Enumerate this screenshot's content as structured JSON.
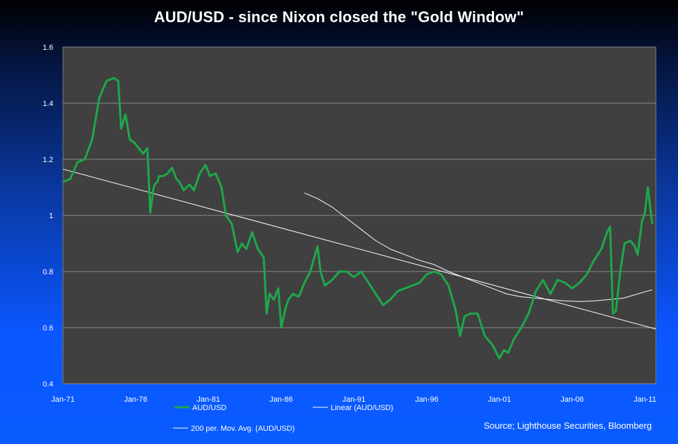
{
  "chart_data": {
    "type": "line",
    "title": "AUD/USD - since Nixon closed the \"Gold Window\"",
    "source": "Source; Lighthouse Securities, Bloomberg",
    "xlim": [
      1971.0,
      2011.75
    ],
    "ylim": [
      0.4,
      1.6
    ],
    "x_tick_labels": [
      "Jan-71",
      "Jan-76",
      "Jan-81",
      "Jan-86",
      "Jan-91",
      "Jan-96",
      "Jan-01",
      "Jan-06",
      "Jan-11"
    ],
    "x_tick_values": [
      1971,
      1976,
      1981,
      1986,
      1991,
      1996,
      2001,
      2006,
      2011
    ],
    "y_tick_labels": [
      "0.4",
      "0.6",
      "0.8",
      "1",
      "1.2",
      "1.4",
      "1.6"
    ],
    "y_tick_values": [
      0.4,
      0.6,
      0.8,
      1.0,
      1.2,
      1.4,
      1.6
    ],
    "grid": "horizontal",
    "legend": [
      "AUD/USD",
      "Linear (AUD/USD)",
      "200 per. Mov. Avg. (AUD/USD)"
    ],
    "colors": {
      "plot_bg": "#404040",
      "aud": "#1ea84a",
      "trend": "#ffffff",
      "ma": "#ffffff",
      "grid": "#8a8a8a"
    },
    "series": [
      {
        "name": "AUD/USD",
        "x": [
          1971.0,
          1971.5,
          1972.0,
          1972.5,
          1973.0,
          1973.5,
          1974.0,
          1974.5,
          1974.8,
          1975.0,
          1975.3,
          1975.6,
          1975.9,
          1976.2,
          1976.5,
          1976.8,
          1977.0,
          1977.2,
          1977.3,
          1977.5,
          1977.6,
          1977.9,
          1978.2,
          1978.5,
          1978.8,
          1979.0,
          1979.3,
          1979.7,
          1980.0,
          1980.4,
          1980.8,
          1981.1,
          1981.5,
          1981.9,
          1982.2,
          1982.6,
          1983.0,
          1983.3,
          1983.6,
          1984.0,
          1984.4,
          1984.8,
          1985.0,
          1985.2,
          1985.5,
          1985.8,
          1986.0,
          1986.3,
          1986.5,
          1986.8,
          1987.2,
          1987.6,
          1988.0,
          1988.5,
          1988.7,
          1989.0,
          1989.5,
          1990.0,
          1990.5,
          1991.0,
          1991.5,
          1992.0,
          1992.5,
          1993.0,
          1993.5,
          1994.0,
          1994.5,
          1995.0,
          1995.5,
          1996.0,
          1996.5,
          1997.0,
          1997.5,
          1998.0,
          1998.3,
          1998.6,
          1999.0,
          1999.5,
          2000.0,
          2000.5,
          2001.0,
          2001.3,
          2001.6,
          2002.0,
          2002.5,
          2003.0,
          2003.5,
          2004.0,
          2004.5,
          2005.0,
          2005.5,
          2006.0,
          2006.5,
          2007.0,
          2007.5,
          2008.0,
          2008.4,
          2008.6,
          2008.8,
          2009.0,
          2009.3,
          2009.6,
          2010.0,
          2010.3,
          2010.5,
          2010.8,
          2011.0,
          2011.2,
          2011.5
        ],
        "values": [
          1.12,
          1.13,
          1.19,
          1.2,
          1.27,
          1.42,
          1.48,
          1.49,
          1.48,
          1.31,
          1.36,
          1.27,
          1.26,
          1.24,
          1.22,
          1.24,
          1.01,
          1.09,
          1.11,
          1.12,
          1.14,
          1.14,
          1.15,
          1.17,
          1.13,
          1.12,
          1.09,
          1.11,
          1.09,
          1.15,
          1.18,
          1.14,
          1.15,
          1.1,
          1.0,
          0.97,
          0.87,
          0.9,
          0.88,
          0.94,
          0.88,
          0.85,
          0.65,
          0.72,
          0.7,
          0.74,
          0.6,
          0.67,
          0.7,
          0.72,
          0.71,
          0.76,
          0.8,
          0.89,
          0.8,
          0.75,
          0.77,
          0.8,
          0.8,
          0.78,
          0.8,
          0.76,
          0.72,
          0.68,
          0.7,
          0.73,
          0.74,
          0.75,
          0.76,
          0.79,
          0.8,
          0.79,
          0.75,
          0.66,
          0.57,
          0.64,
          0.65,
          0.65,
          0.57,
          0.54,
          0.49,
          0.52,
          0.51,
          0.56,
          0.6,
          0.65,
          0.73,
          0.77,
          0.72,
          0.77,
          0.76,
          0.74,
          0.76,
          0.79,
          0.84,
          0.88,
          0.94,
          0.96,
          0.65,
          0.66,
          0.8,
          0.9,
          0.91,
          0.89,
          0.86,
          0.98,
          1.01,
          1.1,
          0.97
        ]
      },
      {
        "name": "Linear (AUD/USD)",
        "x": [
          1971.0,
          2011.75
        ],
        "values": [
          1.165,
          0.595
        ]
      },
      {
        "name": "200 per. Mov. Avg. (AUD/USD)",
        "x": [
          1987.6,
          1988.5,
          1989.5,
          1990.5,
          1991.5,
          1992.5,
          1993.5,
          1994.5,
          1995.5,
          1996.5,
          1997.5,
          1998.5,
          1999.5,
          2000.5,
          2001.5,
          2002.5,
          2003.5,
          2004.5,
          2005.5,
          2006.5,
          2007.5,
          2008.5,
          2009.5,
          2010.5,
          2011.5
        ],
        "values": [
          1.08,
          1.06,
          1.03,
          0.99,
          0.95,
          0.91,
          0.88,
          0.86,
          0.84,
          0.825,
          0.8,
          0.78,
          0.76,
          0.74,
          0.72,
          0.71,
          0.705,
          0.7,
          0.695,
          0.693,
          0.695,
          0.7,
          0.705,
          0.72,
          0.735
        ]
      }
    ]
  }
}
